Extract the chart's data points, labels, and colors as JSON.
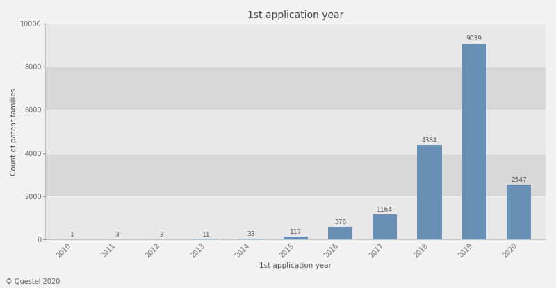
{
  "title": "1st application year",
  "xlabel": "1st application year",
  "ylabel": "Count of patent families",
  "categories": [
    "2010",
    "2011",
    "2012",
    "2013",
    "2014",
    "2015",
    "2016",
    "2017",
    "2018",
    "2019",
    "2020"
  ],
  "values": [
    1,
    3,
    3,
    11,
    33,
    117,
    576,
    1164,
    4384,
    9039,
    2547
  ],
  "bar_color": "#6a8fb5",
  "ylim": [
    0,
    10000
  ],
  "yticks": [
    0,
    2000,
    4000,
    6000,
    8000,
    10000
  ],
  "band_colors": [
    "#e8e8e8",
    "#d8d8d8"
  ],
  "background_color": "#f2f2f2",
  "plot_bg_color": "#e8e8e8",
  "footer_text": "© Questel 2020",
  "title_fontsize": 10,
  "label_fontsize": 7.5,
  "tick_fontsize": 7,
  "annotation_fontsize": 6.5,
  "footer_fontsize": 7,
  "bar_width": 0.55
}
